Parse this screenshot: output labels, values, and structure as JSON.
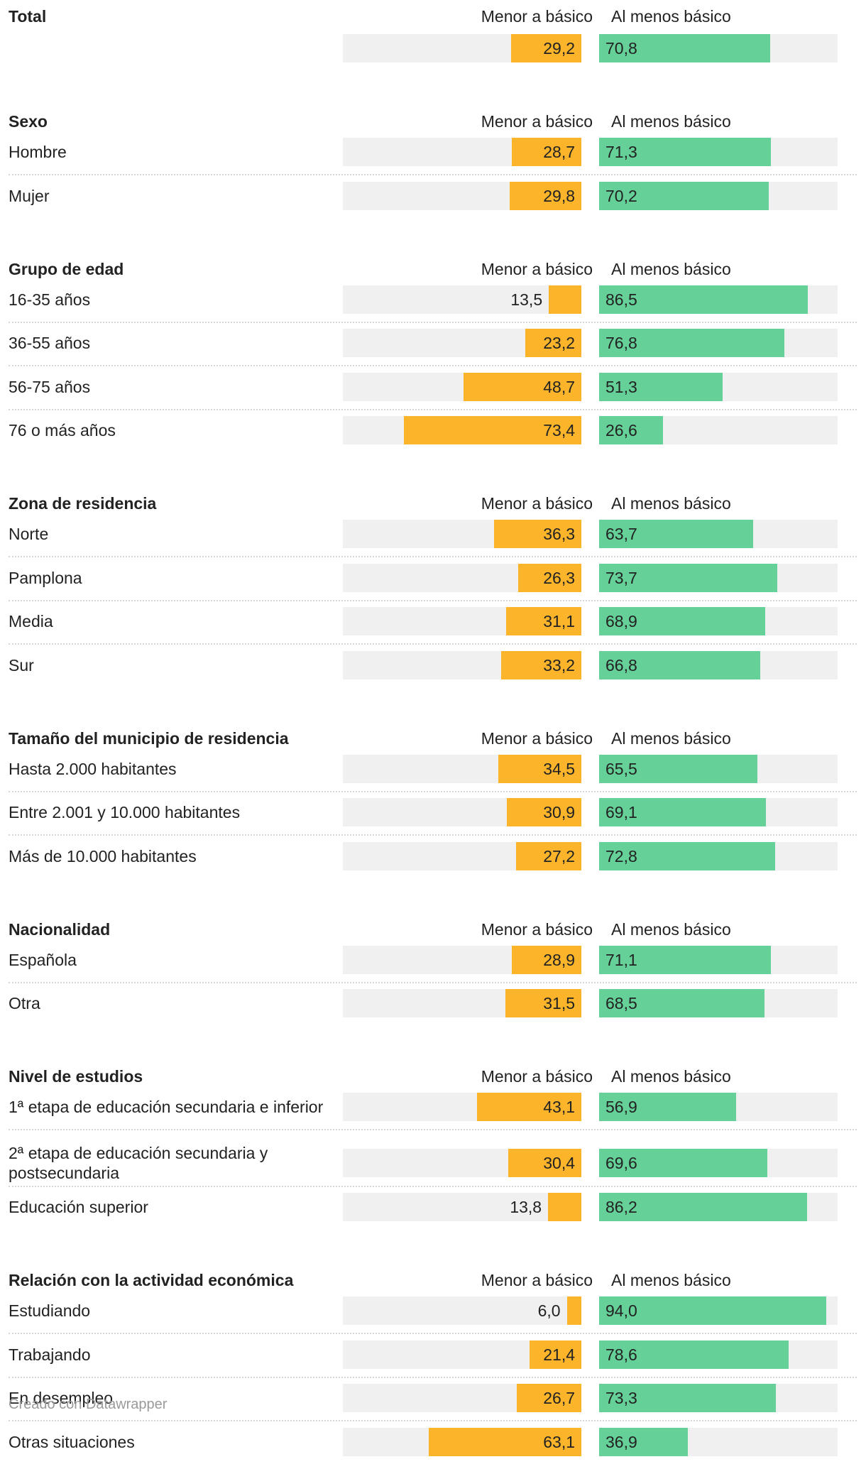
{
  "chart_data": {
    "type": "bar",
    "orientation": "horizontal",
    "stacked_split": true,
    "axis_range": [
      0,
      100
    ],
    "colors": {
      "menor": "#fcb52b",
      "al_menos": "#65d098",
      "background": "#f0f0f0"
    },
    "groups": [
      {
        "title": "Total",
        "col_left": "Menor a básico",
        "col_right": "Al menos básico",
        "rows": [
          {
            "label": "",
            "menor": 29.2,
            "menor_label": "29,2",
            "al_menos": 70.8,
            "al_menos_label": "70,8"
          }
        ]
      },
      {
        "title": "Sexo",
        "col_left": "Menor a básico",
        "col_right": "Al menos básico",
        "rows": [
          {
            "label": "Hombre",
            "menor": 28.7,
            "menor_label": "28,7",
            "al_menos": 71.3,
            "al_menos_label": "71,3"
          },
          {
            "label": "Mujer",
            "menor": 29.8,
            "menor_label": "29,8",
            "al_menos": 70.2,
            "al_menos_label": "70,2"
          }
        ]
      },
      {
        "title": "Grupo de edad",
        "col_left": "Menor a básico",
        "col_right": "Al menos básico",
        "rows": [
          {
            "label": "16-35 años",
            "menor": 13.5,
            "menor_label": "13,5",
            "al_menos": 86.5,
            "al_menos_label": "86,5"
          },
          {
            "label": "36-55 años",
            "menor": 23.2,
            "menor_label": "23,2",
            "al_menos": 76.8,
            "al_menos_label": "76,8"
          },
          {
            "label": "56-75 años",
            "menor": 48.7,
            "menor_label": "48,7",
            "al_menos": 51.3,
            "al_menos_label": "51,3"
          },
          {
            "label": "76 o más años",
            "menor": 73.4,
            "menor_label": "73,4",
            "al_menos": 26.6,
            "al_menos_label": "26,6"
          }
        ]
      },
      {
        "title": "Zona de residencia",
        "col_left": "Menor a básico",
        "col_right": "Al menos básico",
        "rows": [
          {
            "label": "Norte",
            "menor": 36.3,
            "menor_label": "36,3",
            "al_menos": 63.7,
            "al_menos_label": "63,7"
          },
          {
            "label": "Pamplona",
            "menor": 26.3,
            "menor_label": "26,3",
            "al_menos": 73.7,
            "al_menos_label": "73,7"
          },
          {
            "label": "Media",
            "menor": 31.1,
            "menor_label": "31,1",
            "al_menos": 68.9,
            "al_menos_label": "68,9"
          },
          {
            "label": "Sur",
            "menor": 33.2,
            "menor_label": "33,2",
            "al_menos": 66.8,
            "al_menos_label": "66,8"
          }
        ]
      },
      {
        "title": "Tamaño del municipio de residencia",
        "col_left": "Menor a básico",
        "col_right": "Al menos básico",
        "rows": [
          {
            "label": "Hasta 2.000 habitantes",
            "menor": 34.5,
            "menor_label": "34,5",
            "al_menos": 65.5,
            "al_menos_label": "65,5"
          },
          {
            "label": "Entre 2.001 y 10.000 habitantes",
            "menor": 30.9,
            "menor_label": "30,9",
            "al_menos": 69.1,
            "al_menos_label": "69,1"
          },
          {
            "label": "Más de 10.000 habitantes",
            "menor": 27.2,
            "menor_label": "27,2",
            "al_menos": 72.8,
            "al_menos_label": "72,8"
          }
        ]
      },
      {
        "title": "Nacionalidad",
        "col_left": "Menor a básico",
        "col_right": "Al menos básico",
        "rows": [
          {
            "label": "Española",
            "menor": 28.9,
            "menor_label": "28,9",
            "al_menos": 71.1,
            "al_menos_label": "71,1"
          },
          {
            "label": "Otra",
            "menor": 31.5,
            "menor_label": "31,5",
            "al_menos": 68.5,
            "al_menos_label": "68,5"
          }
        ]
      },
      {
        "title": "Nivel de estudios",
        "col_left": "Menor a básico",
        "col_right": "Al menos básico",
        "rows": [
          {
            "label": "1ª etapa de educación secundaria e inferior",
            "menor": 43.1,
            "menor_label": "43,1",
            "al_menos": 56.9,
            "al_menos_label": "56,9"
          },
          {
            "label": "2ª etapa de educación secundaria y postsecundaria",
            "menor": 30.4,
            "menor_label": "30,4",
            "al_menos": 69.6,
            "al_menos_label": "69,6"
          },
          {
            "label": "Educación superior",
            "menor": 13.8,
            "menor_label": "13,8",
            "al_menos": 86.2,
            "al_menos_label": "86,2"
          }
        ]
      },
      {
        "title": "Relación con la actividad económica",
        "col_left": "Menor a básico",
        "col_right": "Al menos básico",
        "rows": [
          {
            "label": "Estudiando",
            "menor": 6.0,
            "menor_label": "6,0",
            "al_menos": 94.0,
            "al_menos_label": "94,0"
          },
          {
            "label": "Trabajando",
            "menor": 21.4,
            "menor_label": "21,4",
            "al_menos": 78.6,
            "al_menos_label": "78,6"
          },
          {
            "label": "En desempleo",
            "menor": 26.7,
            "menor_label": "26,7",
            "al_menos": 73.3,
            "al_menos_label": "73,3"
          },
          {
            "label": "Otras situaciones",
            "menor": 63.1,
            "menor_label": "63,1",
            "al_menos": 36.9,
            "al_menos_label": "36,9"
          }
        ]
      }
    ]
  },
  "footer": {
    "credit": "Creado con Datawrapper"
  }
}
